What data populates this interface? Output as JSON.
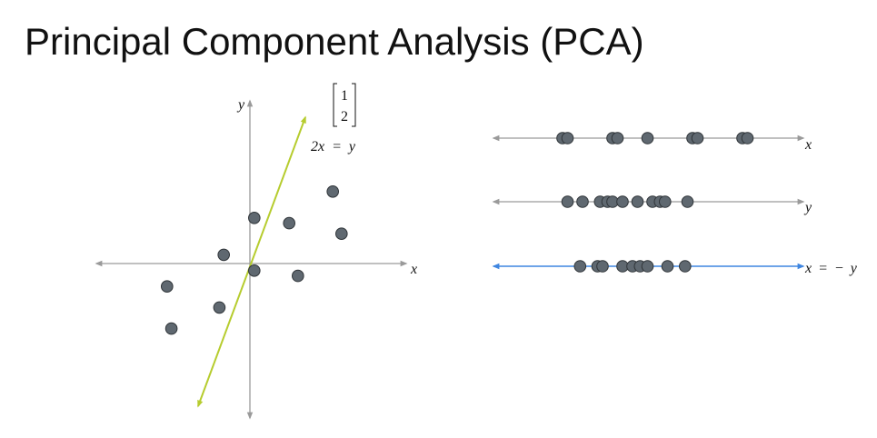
{
  "title": "Principal Component Analysis (PCA)",
  "colors": {
    "axis": "#9a9a9a",
    "point_fill": "#5f6870",
    "point_stroke": "#2f3438",
    "principal_direction": "#b6cc2e",
    "projection_axis_blue": "#3f86e0",
    "text": "#111111"
  },
  "scatter": {
    "x_axis_label": "x",
    "y_axis_label": "y",
    "direction_vector": [
      "1",
      "2"
    ],
    "line_equation": "2x = y",
    "points": [
      {
        "x": 0.1,
        "y": 0.9
      },
      {
        "x": 0.9,
        "y": 0.8
      },
      {
        "x": 1.9,
        "y": 1.4
      },
      {
        "x": 2.1,
        "y": 0.6
      },
      {
        "x": -0.6,
        "y": 0.2
      },
      {
        "x": 0.1,
        "y": -0.1
      },
      {
        "x": 1.1,
        "y": -0.2
      },
      {
        "x": -1.9,
        "y": -0.4
      },
      {
        "x": -0.7,
        "y": -0.8
      },
      {
        "x": -1.8,
        "y": -1.2
      }
    ]
  },
  "projections": [
    {
      "label": "x",
      "values": [
        -3.6,
        -3.4,
        -1.6,
        -1.4,
        -0.2,
        1.6,
        1.8,
        3.6,
        3.8
      ]
    },
    {
      "label": "y",
      "values": [
        -3.4,
        -2.8,
        -2.1,
        -1.8,
        -1.6,
        -1.2,
        -0.6,
        0.0,
        0.3,
        0.5,
        1.4
      ]
    },
    {
      "label": "x = − y",
      "values": [
        -2.9,
        -2.2,
        -2.0,
        -1.2,
        -0.8,
        -0.5,
        -0.2,
        0.6,
        1.3
      ]
    }
  ]
}
